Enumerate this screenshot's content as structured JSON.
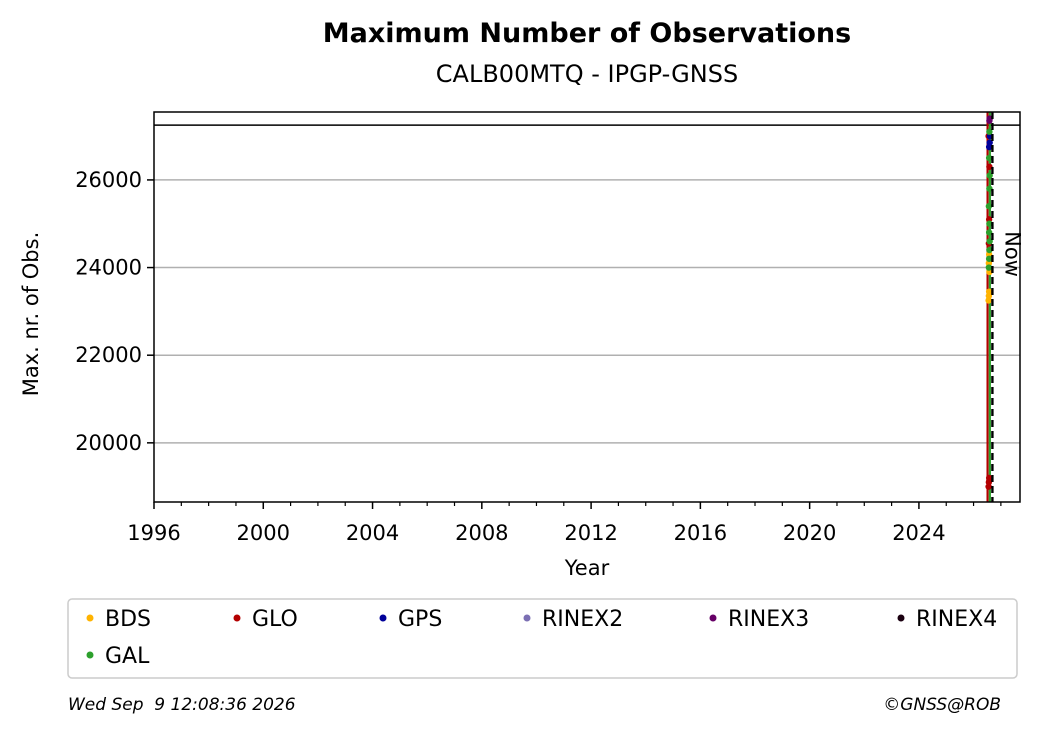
{
  "chart_data": {
    "type": "scatter",
    "title": "Maximum Number of Observations",
    "subtitle": "CALB00MTQ - IPGP-GNSS",
    "xlabel": "Year",
    "ylabel": "Max. nr. of Obs.",
    "xlim": [
      1996,
      2027.7
    ],
    "ylim": [
      18650,
      27550
    ],
    "x_ticks": [
      "1996",
      "2000",
      "2004",
      "2008",
      "2012",
      "2016",
      "2020",
      "2024"
    ],
    "x_tick_values": [
      1996,
      2000,
      2004,
      2008,
      2012,
      2016,
      2020,
      2024
    ],
    "y_ticks": [
      "20000",
      "22000",
      "24000",
      "26000"
    ],
    "y_tick_values": [
      20000,
      22000,
      24000,
      26000
    ],
    "grid": "horizontal",
    "reference_line": {
      "y": 27250
    },
    "now_line": {
      "x": 2026.69,
      "label": "Now",
      "style": "dashed",
      "color": "#000000"
    },
    "colors": {
      "BDS": "#ffb300",
      "GLO": "#b30000",
      "GPS": "#000099",
      "RINEX2": "#7b6fb3",
      "RINEX3": "#660066",
      "RINEX4": "#1a0010",
      "GAL": "#2ca02c"
    },
    "legend_placement": "bottom",
    "series": [
      {
        "name": "BDS",
        "x": [
          2026.55,
          2026.56,
          2026.57,
          2026.58,
          2026.56,
          2026.57
        ],
        "y": [
          23250,
          23350,
          23450,
          23900,
          24100,
          24300
        ]
      },
      {
        "name": "GLO",
        "x": [
          2026.55,
          2026.56,
          2026.57,
          2026.58,
          2026.56,
          2026.57,
          2026.58,
          2026.55
        ],
        "y": [
          19000,
          19100,
          19200,
          19150,
          24550,
          25100,
          26300,
          27000
        ]
      },
      {
        "name": "GPS",
        "x": [
          2026.57,
          2026.59,
          2026.6
        ],
        "y": [
          26750,
          26850,
          27000
        ]
      },
      {
        "name": "RINEX2",
        "x": [],
        "y": []
      },
      {
        "name": "RINEX3",
        "x": [
          2026.58,
          2026.59
        ],
        "y": [
          27350,
          27400
        ]
      },
      {
        "name": "RINEX4",
        "x": [],
        "y": []
      },
      {
        "name": "GAL",
        "x": [
          2026.56,
          2026.57,
          2026.58,
          2026.59,
          2026.57,
          2026.58,
          2026.56,
          2026.58,
          2026.59,
          2026.57,
          2026.58
        ],
        "y": [
          24000,
          24200,
          24400,
          24600,
          24800,
          25000,
          25400,
          25800,
          26100,
          26500,
          27100
        ]
      }
    ]
  },
  "footer": {
    "timestamp": "Wed Sep  9 12:08:36 2026",
    "copyright": "©GNSS@ROB"
  }
}
